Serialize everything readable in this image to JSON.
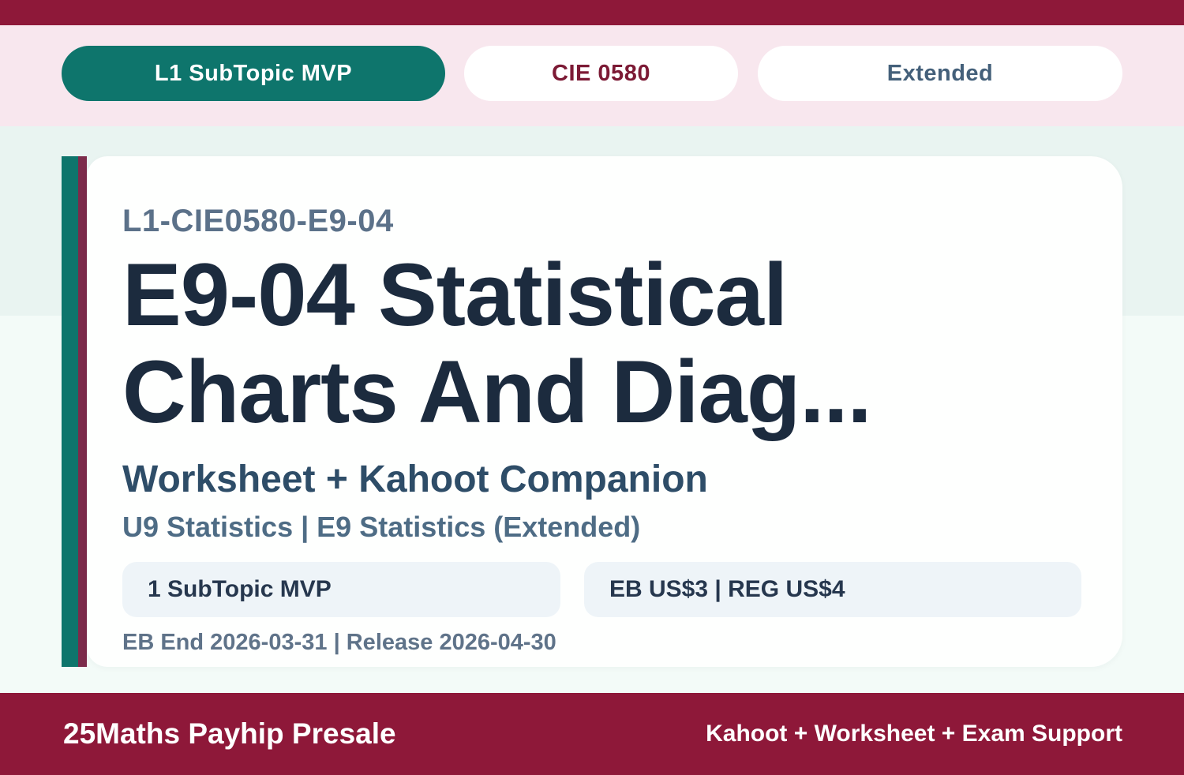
{
  "badges": [
    {
      "label": "L1 SubTopic MVP"
    },
    {
      "label": "CIE 0580"
    },
    {
      "label": "Extended"
    }
  ],
  "card": {
    "code": "L1-CIE0580-E9-04",
    "title": "E9-04 Statistical Charts And Diag...",
    "subtitle": "Worksheet + Kahoot Companion",
    "topics": "U9 Statistics | E9 Statistics (Extended)",
    "pills": [
      {
        "label": "1 SubTopic MVP"
      },
      {
        "label": "EB US$3 | REG US$4"
      }
    ],
    "dates": "EB End 2026-03-31 | Release 2026-04-30"
  },
  "footer": {
    "brand": "25Maths Payhip Presale",
    "tagline": "Kahoot + Worksheet + Exam Support"
  },
  "colors": {
    "maroon": "#8E1839",
    "pink_band": "#F8E7EE",
    "teal": "#0E756C",
    "accent_maroon_bar": "#7C2B4B",
    "bg_mint_top": "#E9F4F1",
    "bg_mint_bottom": "#F3FBF8",
    "card_white": "#FFFFFF",
    "title_navy": "#1C2B3E",
    "code_slate": "#5B7189",
    "subtitle_blue": "#2E4D68",
    "topics_slate": "#4E6C85",
    "pill_bg": "#EEF4F8",
    "pill_text": "#26374E",
    "dates_slate": "#5F7389",
    "cie_maroon_text": "#7C1A35",
    "extended_slate_text": "#44607A"
  }
}
